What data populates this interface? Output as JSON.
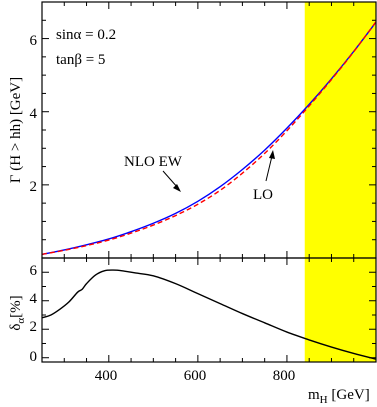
{
  "chart_data": [
    {
      "type": "line",
      "panel": "top",
      "ylabel": "Γ (H > hh) [GeV]",
      "xlim": [
        250,
        1000
      ],
      "ylim": [
        0,
        7
      ],
      "yticks": [
        2,
        4,
        6
      ],
      "annotations": {
        "line1": "sinα = 0.2",
        "line2": "tanβ = 5"
      },
      "shaded_band": {
        "x_from": 840,
        "x_to": 1000,
        "color": "#ffff00"
      },
      "series": [
        {
          "name": "NLO EW",
          "color": "#0000ff",
          "style": "solid",
          "x": [
            250,
            300,
            350,
            400,
            450,
            500,
            550,
            600,
            650,
            700,
            750,
            800,
            850,
            900,
            950,
            1000
          ],
          "y": [
            0.1,
            0.22,
            0.36,
            0.52,
            0.72,
            0.95,
            1.22,
            1.55,
            1.95,
            2.42,
            2.95,
            3.55,
            4.2,
            4.9,
            5.65,
            6.45
          ]
        },
        {
          "name": "LO",
          "color": "#ff0000",
          "style": "dashed",
          "x": [
            250,
            300,
            350,
            400,
            450,
            500,
            550,
            600,
            650,
            700,
            750,
            800,
            850,
            900,
            950,
            1000
          ],
          "y": [
            0.1,
            0.21,
            0.34,
            0.49,
            0.68,
            0.9,
            1.16,
            1.47,
            1.85,
            2.32,
            2.86,
            3.48,
            4.16,
            4.88,
            5.64,
            6.46
          ]
        }
      ],
      "labels": {
        "nlo": "NLO EW",
        "lo": "LO"
      }
    },
    {
      "type": "line",
      "panel": "bottom",
      "ylabel": "δα [%]",
      "ylabel_main": "δ",
      "ylabel_sub": "α",
      "ylabel_rest": "[%]",
      "xlabel_main": "m",
      "xlabel_sub": "H",
      "xlabel_rest": " [GeV]",
      "xlim": [
        250,
        1000
      ],
      "ylim": [
        -0.3,
        7
      ],
      "xticks": [
        400,
        600,
        800
      ],
      "yticks": [
        0,
        2,
        4,
        6
      ],
      "series": [
        {
          "color": "#000000",
          "x": [
            250,
            270,
            290,
            310,
            330,
            340,
            350,
            370,
            390,
            410,
            430,
            460,
            500,
            550,
            600,
            650,
            700,
            750,
            800,
            850,
            900,
            950,
            1000
          ],
          "y": [
            2.8,
            3.0,
            3.4,
            3.9,
            4.6,
            4.8,
            5.2,
            5.8,
            6.1,
            6.15,
            6.1,
            5.95,
            5.75,
            5.2,
            4.5,
            3.8,
            3.1,
            2.45,
            1.8,
            1.25,
            0.75,
            0.3,
            -0.1
          ]
        }
      ]
    }
  ]
}
